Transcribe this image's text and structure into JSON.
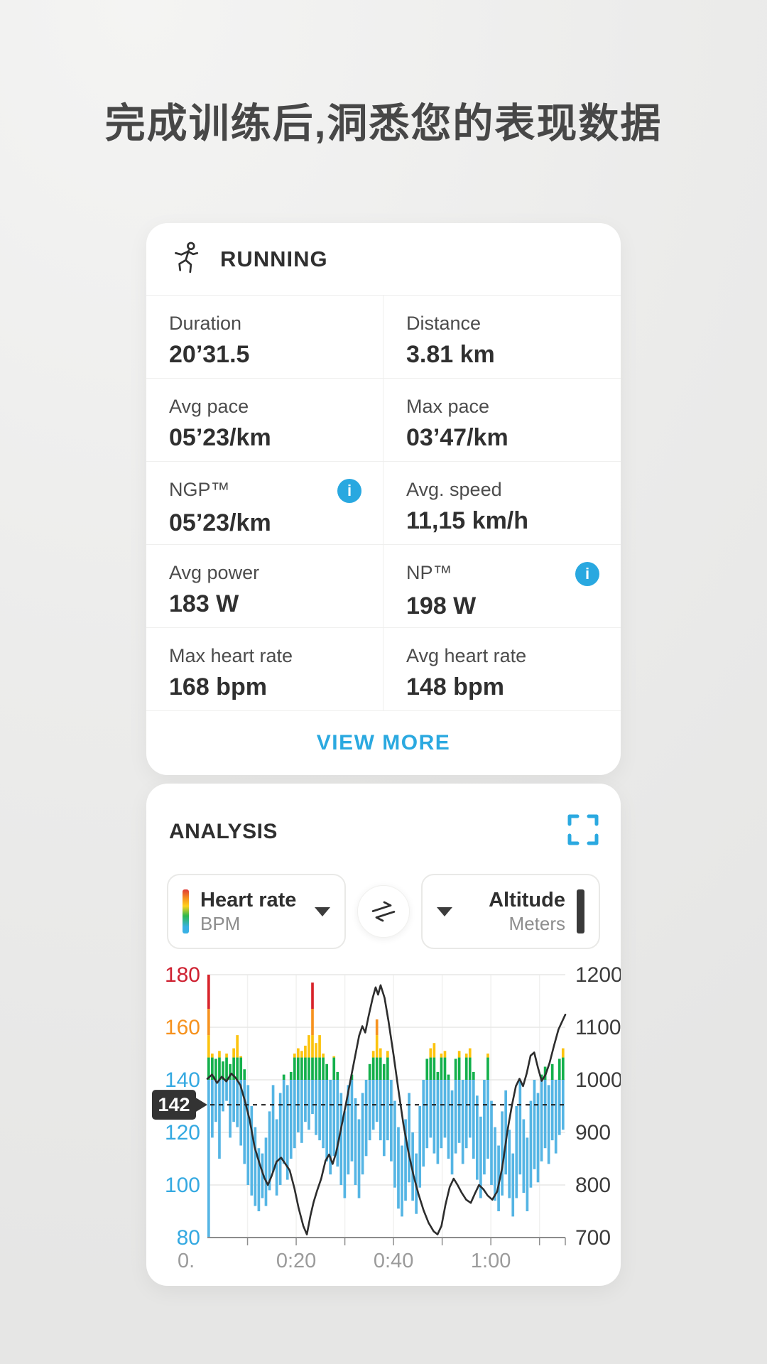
{
  "page_title": "完成训练后,洞悉您的表现数据",
  "workout_card": {
    "activity": "RUNNING",
    "stats": [
      {
        "label": "Duration",
        "value": "20’31.5"
      },
      {
        "label": "Distance",
        "value": "3.81 km"
      },
      {
        "label": "Avg pace",
        "value": "05’23/km"
      },
      {
        "label": "Max pace",
        "value": "03’47/km"
      },
      {
        "label": "NGP™",
        "value": "05’23/km",
        "info": true
      },
      {
        "label": "Avg. speed",
        "value": "11,15 km/h"
      },
      {
        "label": "Avg power",
        "value": "183 W"
      },
      {
        "label": "NP™",
        "value": "198 W",
        "info": true
      },
      {
        "label": "Max heart rate",
        "value": "168 bpm"
      },
      {
        "label": "Avg heart rate",
        "value": "148 bpm"
      }
    ],
    "view_more_label": "VIEW MORE",
    "info_icon_glyph": "i"
  },
  "analysis_card": {
    "title": "ANALYSIS",
    "left_selector": {
      "title": "Heart rate",
      "subtitle": "BPM"
    },
    "right_selector": {
      "title": "Altitude",
      "subtitle": "Meters"
    },
    "chart_data": {
      "type": "line",
      "title": "",
      "left_axis": {
        "label": "Heart rate (BPM)",
        "min": 80,
        "max": 180,
        "ticks": [
          180,
          160,
          140,
          120,
          100,
          80
        ],
        "tick_colors": [
          "#ce2030",
          "#f6921e",
          "#35a9e1",
          "#35a9e1",
          "#35a9e1",
          "#35a9e1"
        ]
      },
      "right_axis": {
        "label": "Altitude (Meters)",
        "min": 700,
        "max": 1200,
        "ticks": [
          1200,
          1100,
          1000,
          900,
          800,
          700
        ],
        "tick_color": "#3c3c3c"
      },
      "x_axis": {
        "start_min": 1.75,
        "end_min": 75.3,
        "major_labels": [
          {
            "min": 20,
            "text": "0:20"
          },
          {
            "min": 40,
            "text": "0:40"
          },
          {
            "min": 60,
            "text": "1:00"
          }
        ],
        "minor_tick_minutes": [
          10,
          20,
          30,
          40,
          50,
          60,
          70
        ],
        "clipped_first_label": "0.",
        "label_color": "#9b9b9b"
      },
      "marker": {
        "label": "142",
        "line_bpm": 130.5,
        "dash_color": "#1c1c1c",
        "tag_color": "#333333"
      },
      "grid_color": "#e7e7e6",
      "baseline_color": "#8c8c8c",
      "zones": [
        {
          "from": 80,
          "to": 140,
          "color": "#55b5e4",
          "name": "blue"
        },
        {
          "from": 140,
          "to": 148.5,
          "color": "#14b04c",
          "name": "green"
        },
        {
          "from": 148.5,
          "to": 157,
          "color": "#fcc30e",
          "name": "yellow"
        },
        {
          "from": 157,
          "to": 167,
          "color": "#f6921e",
          "name": "orange"
        },
        {
          "from": 167,
          "to": 180,
          "color": "#d8232a",
          "name": "red"
        }
      ],
      "series": [
        {
          "name": "Heart rate",
          "unit": "BPM",
          "axis": "left",
          "style": "zone-bars",
          "bands": [
            [
              80,
              180
            ],
            [
              118,
              150
            ],
            [
              124,
              148
            ],
            [
              110,
              151
            ],
            [
              128,
              147
            ],
            [
              132,
              150
            ],
            [
              118,
              146
            ],
            [
              124,
              152
            ],
            [
              122,
              157
            ],
            [
              115,
              149
            ],
            [
              108,
              144
            ],
            [
              100,
              138
            ],
            [
              96,
              130
            ],
            [
              92,
              122
            ],
            [
              90,
              114
            ],
            [
              95,
              112
            ],
            [
              92,
              118
            ],
            [
              98,
              128
            ],
            [
              105,
              138
            ],
            [
              96,
              125
            ],
            [
              100,
              135
            ],
            [
              108,
              142
            ],
            [
              102,
              138
            ],
            [
              110,
              143
            ],
            [
              114,
              150
            ],
            [
              120,
              152
            ],
            [
              116,
              151
            ],
            [
              124,
              153
            ],
            [
              121,
              157
            ],
            [
              127,
              177
            ],
            [
              119,
              154
            ],
            [
              117,
              157
            ],
            [
              114,
              150
            ],
            [
              109,
              146
            ],
            [
              104,
              140
            ],
            [
              111,
              149
            ],
            [
              107,
              143
            ],
            [
              100,
              135
            ],
            [
              95,
              128
            ],
            [
              104,
              138
            ],
            [
              109,
              142
            ],
            [
              100,
              133
            ],
            [
              95,
              125
            ],
            [
              104,
              135
            ],
            [
              111,
              140
            ],
            [
              117,
              146
            ],
            [
              121,
              151
            ],
            [
              124,
              163
            ],
            [
              117,
              152
            ],
            [
              111,
              146
            ],
            [
              117,
              151
            ],
            [
              109,
              140
            ],
            [
              99,
              132
            ],
            [
              91,
              122
            ],
            [
              88,
              115
            ],
            [
              94,
              125
            ],
            [
              101,
              135
            ],
            [
              94,
              120
            ],
            [
              89,
              112
            ],
            [
              99,
              130
            ],
            [
              107,
              140
            ],
            [
              114,
              148
            ],
            [
              118,
              152
            ],
            [
              112,
              154
            ],
            [
              108,
              143
            ],
            [
              114,
              150
            ],
            [
              118,
              151
            ],
            [
              110,
              142
            ],
            [
              104,
              136
            ],
            [
              112,
              148
            ],
            [
              116,
              151
            ],
            [
              108,
              140
            ],
            [
              114,
              150
            ],
            [
              118,
              152
            ],
            [
              110,
              143
            ],
            [
              102,
              134
            ],
            [
              95,
              126
            ],
            [
              104,
              140
            ],
            [
              110,
              150
            ],
            [
              100,
              132
            ],
            [
              94,
              122
            ],
            [
              90,
              115
            ],
            [
              96,
              128
            ],
            [
              104,
              136
            ],
            [
              95,
              121
            ],
            [
              88,
              112
            ],
            [
              95,
              130
            ],
            [
              104,
              140
            ],
            [
              97,
              125
            ],
            [
              90,
              118
            ],
            [
              99,
              132
            ],
            [
              106,
              140
            ],
            [
              101,
              135
            ],
            [
              109,
              142
            ],
            [
              114,
              145
            ],
            [
              108,
              138
            ],
            [
              117,
              146
            ],
            [
              112,
              140
            ],
            [
              119,
              148
            ],
            [
              121,
              152
            ]
          ]
        },
        {
          "name": "Altitude",
          "unit": "Meters",
          "axis": "right",
          "style": "line",
          "color": "#2d2d2d",
          "points": [
            [
              0,
              1002
            ],
            [
              0.013,
              1010
            ],
            [
              0.027,
              994
            ],
            [
              0.04,
              1006
            ],
            [
              0.053,
              997
            ],
            [
              0.067,
              1012
            ],
            [
              0.08,
              1003
            ],
            [
              0.092,
              990
            ],
            [
              0.104,
              962
            ],
            [
              0.118,
              924
            ],
            [
              0.132,
              872
            ],
            [
              0.146,
              840
            ],
            [
              0.159,
              814
            ],
            [
              0.169,
              800
            ],
            [
              0.18,
              818
            ],
            [
              0.193,
              844
            ],
            [
              0.206,
              852
            ],
            [
              0.218,
              840
            ],
            [
              0.23,
              828
            ],
            [
              0.243,
              794
            ],
            [
              0.255,
              756
            ],
            [
              0.268,
              722
            ],
            [
              0.278,
              706
            ],
            [
              0.288,
              742
            ],
            [
              0.297,
              768
            ],
            [
              0.307,
              790
            ],
            [
              0.318,
              812
            ],
            [
              0.33,
              846
            ],
            [
              0.34,
              858
            ],
            [
              0.35,
              840
            ],
            [
              0.36,
              862
            ],
            [
              0.373,
              906
            ],
            [
              0.386,
              950
            ],
            [
              0.4,
              1000
            ],
            [
              0.413,
              1046
            ],
            [
              0.424,
              1084
            ],
            [
              0.433,
              1102
            ],
            [
              0.441,
              1090
            ],
            [
              0.45,
              1120
            ],
            [
              0.462,
              1156
            ],
            [
              0.47,
              1176
            ],
            [
              0.477,
              1162
            ],
            [
              0.484,
              1180
            ],
            [
              0.495,
              1156
            ],
            [
              0.506,
              1112
            ],
            [
              0.52,
              1048
            ],
            [
              0.534,
              980
            ],
            [
              0.548,
              914
            ],
            [
              0.562,
              862
            ],
            [
              0.576,
              818
            ],
            [
              0.59,
              782
            ],
            [
              0.604,
              752
            ],
            [
              0.618,
              728
            ],
            [
              0.632,
              712
            ],
            [
              0.643,
              706
            ],
            [
              0.654,
              722
            ],
            [
              0.665,
              762
            ],
            [
              0.677,
              796
            ],
            [
              0.688,
              812
            ],
            [
              0.699,
              800
            ],
            [
              0.71,
              786
            ],
            [
              0.723,
              772
            ],
            [
              0.736,
              766
            ],
            [
              0.749,
              786
            ],
            [
              0.759,
              800
            ],
            [
              0.771,
              792
            ],
            [
              0.783,
              780
            ],
            [
              0.796,
              772
            ],
            [
              0.81,
              788
            ],
            [
              0.824,
              834
            ],
            [
              0.838,
              902
            ],
            [
              0.851,
              952
            ],
            [
              0.862,
              988
            ],
            [
              0.872,
              1002
            ],
            [
              0.882,
              988
            ],
            [
              0.892,
              1012
            ],
            [
              0.903,
              1046
            ],
            [
              0.913,
              1052
            ],
            [
              0.924,
              1022
            ],
            [
              0.934,
              998
            ],
            [
              0.945,
              1010
            ],
            [
              0.956,
              1032
            ],
            [
              0.968,
              1064
            ],
            [
              0.981,
              1096
            ],
            [
              1,
              1124
            ]
          ]
        }
      ]
    }
  }
}
